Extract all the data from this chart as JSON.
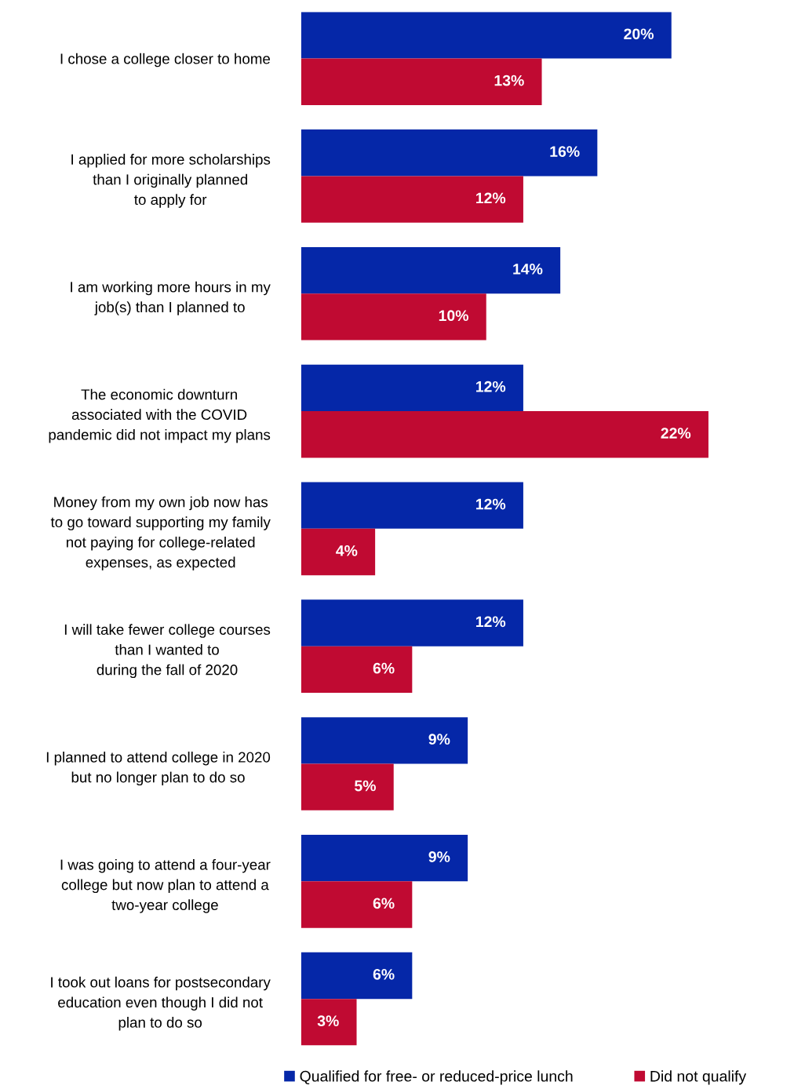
{
  "chart_data": {
    "type": "bar",
    "orientation": "horizontal",
    "categories": [
      "I chose a college closer to home",
      "I applied for more scholarships\nthan I originally planned\nto apply for",
      "I am working more hours in my\njob(s) than I planned to",
      "The economic downturn\nassociated with the COVID\npandemic did not impact my plans",
      "Money from my own job now has\nto go toward supporting my family\nnot paying for college-related\nexpenses, as expected",
      "I will take fewer college courses\nthan I wanted to\nduring the fall of 2020",
      "I planned to attend college in 2020\nbut no longer plan to do so",
      "I was going to attend a four-year\ncollege but now plan to attend a\ntwo-year college",
      "I took out loans for postsecondary\neducation even though I did not\nplan to do so"
    ],
    "series": [
      {
        "name": "Qualified for free- or reduced-price lunch",
        "color": "#0527a8",
        "values": [
          20,
          16,
          14,
          12,
          12,
          12,
          9,
          9,
          6
        ],
        "value_labels": [
          "20%",
          "16%",
          "14%",
          "12%",
          "12%",
          "12%",
          "9%",
          "9%",
          "6%"
        ]
      },
      {
        "name": "Did not qualify",
        "color": "#c00a32",
        "values": [
          13,
          12,
          10,
          22,
          4,
          6,
          5,
          6,
          3
        ],
        "value_labels": [
          "13%",
          "12%",
          "10%",
          "22%",
          "4%",
          "6%",
          "5%",
          "6%",
          "3%"
        ]
      }
    ],
    "tick_labels": "y",
    "grid": false,
    "legend": "bottom"
  }
}
